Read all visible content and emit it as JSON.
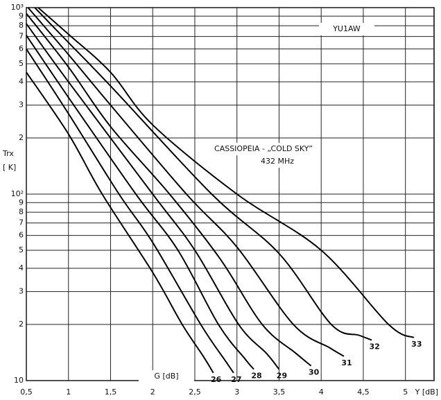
{
  "chart_data": {
    "type": "line",
    "ylabel": "Trx",
    "yunit": "[ K]",
    "xlabel": "Y [dB]",
    "annotations": [
      "YU1AW",
      "CASSIOPEIA - „COLD SKY”",
      "432 MHz",
      "G [dB]"
    ],
    "log_y": true,
    "grid": true,
    "color": "#000000",
    "xlim": [
      0.5,
      5.34
    ],
    "ylim": [
      10,
      1000
    ],
    "xticks": [
      {
        "value": 0.5,
        "label": "0,5"
      },
      1,
      {
        "value": 1.5,
        "label": "1,5"
      },
      2,
      {
        "value": 2.5,
        "label": "2,5"
      },
      3,
      {
        "value": 3.5,
        "label": "3,5"
      },
      4,
      {
        "value": 4.5,
        "label": "4,5"
      },
      5
    ],
    "yticks": [
      10,
      {
        "value": 20,
        "label": "2"
      },
      {
        "value": 30,
        "label": "3"
      },
      {
        "value": 40,
        "label": "4"
      },
      {
        "value": 50,
        "label": "5"
      },
      {
        "value": 60,
        "label": "6"
      },
      {
        "value": 70,
        "label": "7"
      },
      {
        "value": 80,
        "label": "8"
      },
      {
        "value": 90,
        "label": "9"
      },
      {
        "value": 100,
        "label": "10²"
      },
      {
        "value": 200,
        "label": "2"
      },
      {
        "value": 300,
        "label": "3"
      },
      {
        "value": 400,
        "label": "4"
      },
      {
        "value": 500,
        "label": "5"
      },
      {
        "value": 600,
        "label": "6"
      },
      {
        "value": 700,
        "label": "7"
      },
      {
        "value": 800,
        "label": "8"
      },
      {
        "value": 900,
        "label": "9"
      },
      {
        "value": 1000,
        "label": "10³"
      }
    ],
    "series": [
      {
        "name": "26",
        "x": [
          0.5,
          1,
          1.4,
          2,
          2.35,
          2.6,
          2.72
        ],
        "values": [
          450,
          210,
          100,
          38,
          20,
          13.5,
          11
        ]
      },
      {
        "name": "27",
        "x": [
          0.5,
          1,
          1.6,
          2,
          2.57,
          2.85,
          2.96
        ],
        "values": [
          600,
          270,
          100,
          55,
          20,
          13,
          11
        ]
      },
      {
        "name": "28",
        "x": [
          0.5,
          1,
          1.8,
          2.3,
          2.78,
          3.1,
          3.2
        ],
        "values": [
          710,
          330,
          100,
          50,
          20,
          13,
          11.5
        ]
      },
      {
        "name": "29",
        "x": [
          0.5,
          1,
          2,
          2.5,
          3.02,
          3.35,
          3.5
        ],
        "values": [
          820,
          400,
          100,
          50,
          20,
          14,
          11.5
        ]
      },
      {
        "name": "30",
        "x": [
          0.5,
          1,
          1.5,
          2.2,
          2.8,
          3.3,
          3.7,
          3.88
        ],
        "values": [
          930,
          480,
          230,
          100,
          45,
          20,
          14,
          12
        ]
      },
      {
        "name": "31",
        "x": [
          0.52,
          1,
          1.5,
          2.4,
          3,
          3.67,
          4.1,
          4.27
        ],
        "values": [
          1000,
          560,
          300,
          100,
          52,
          20,
          15,
          13.5
        ]
      },
      {
        "name": "32",
        "x": [
          0.6,
          1,
          1.5,
          2.7,
          3.5,
          4.12,
          4.45,
          4.6
        ],
        "values": [
          1000,
          650,
          380,
          100,
          48,
          20,
          17.5,
          16.5
        ]
      },
      {
        "name": "33",
        "x": [
          0.64,
          1,
          1.5,
          2,
          3,
          4,
          4.8,
          5.1
        ],
        "values": [
          1000,
          720,
          450,
          235,
          100,
          50,
          20,
          17
        ]
      }
    ]
  }
}
